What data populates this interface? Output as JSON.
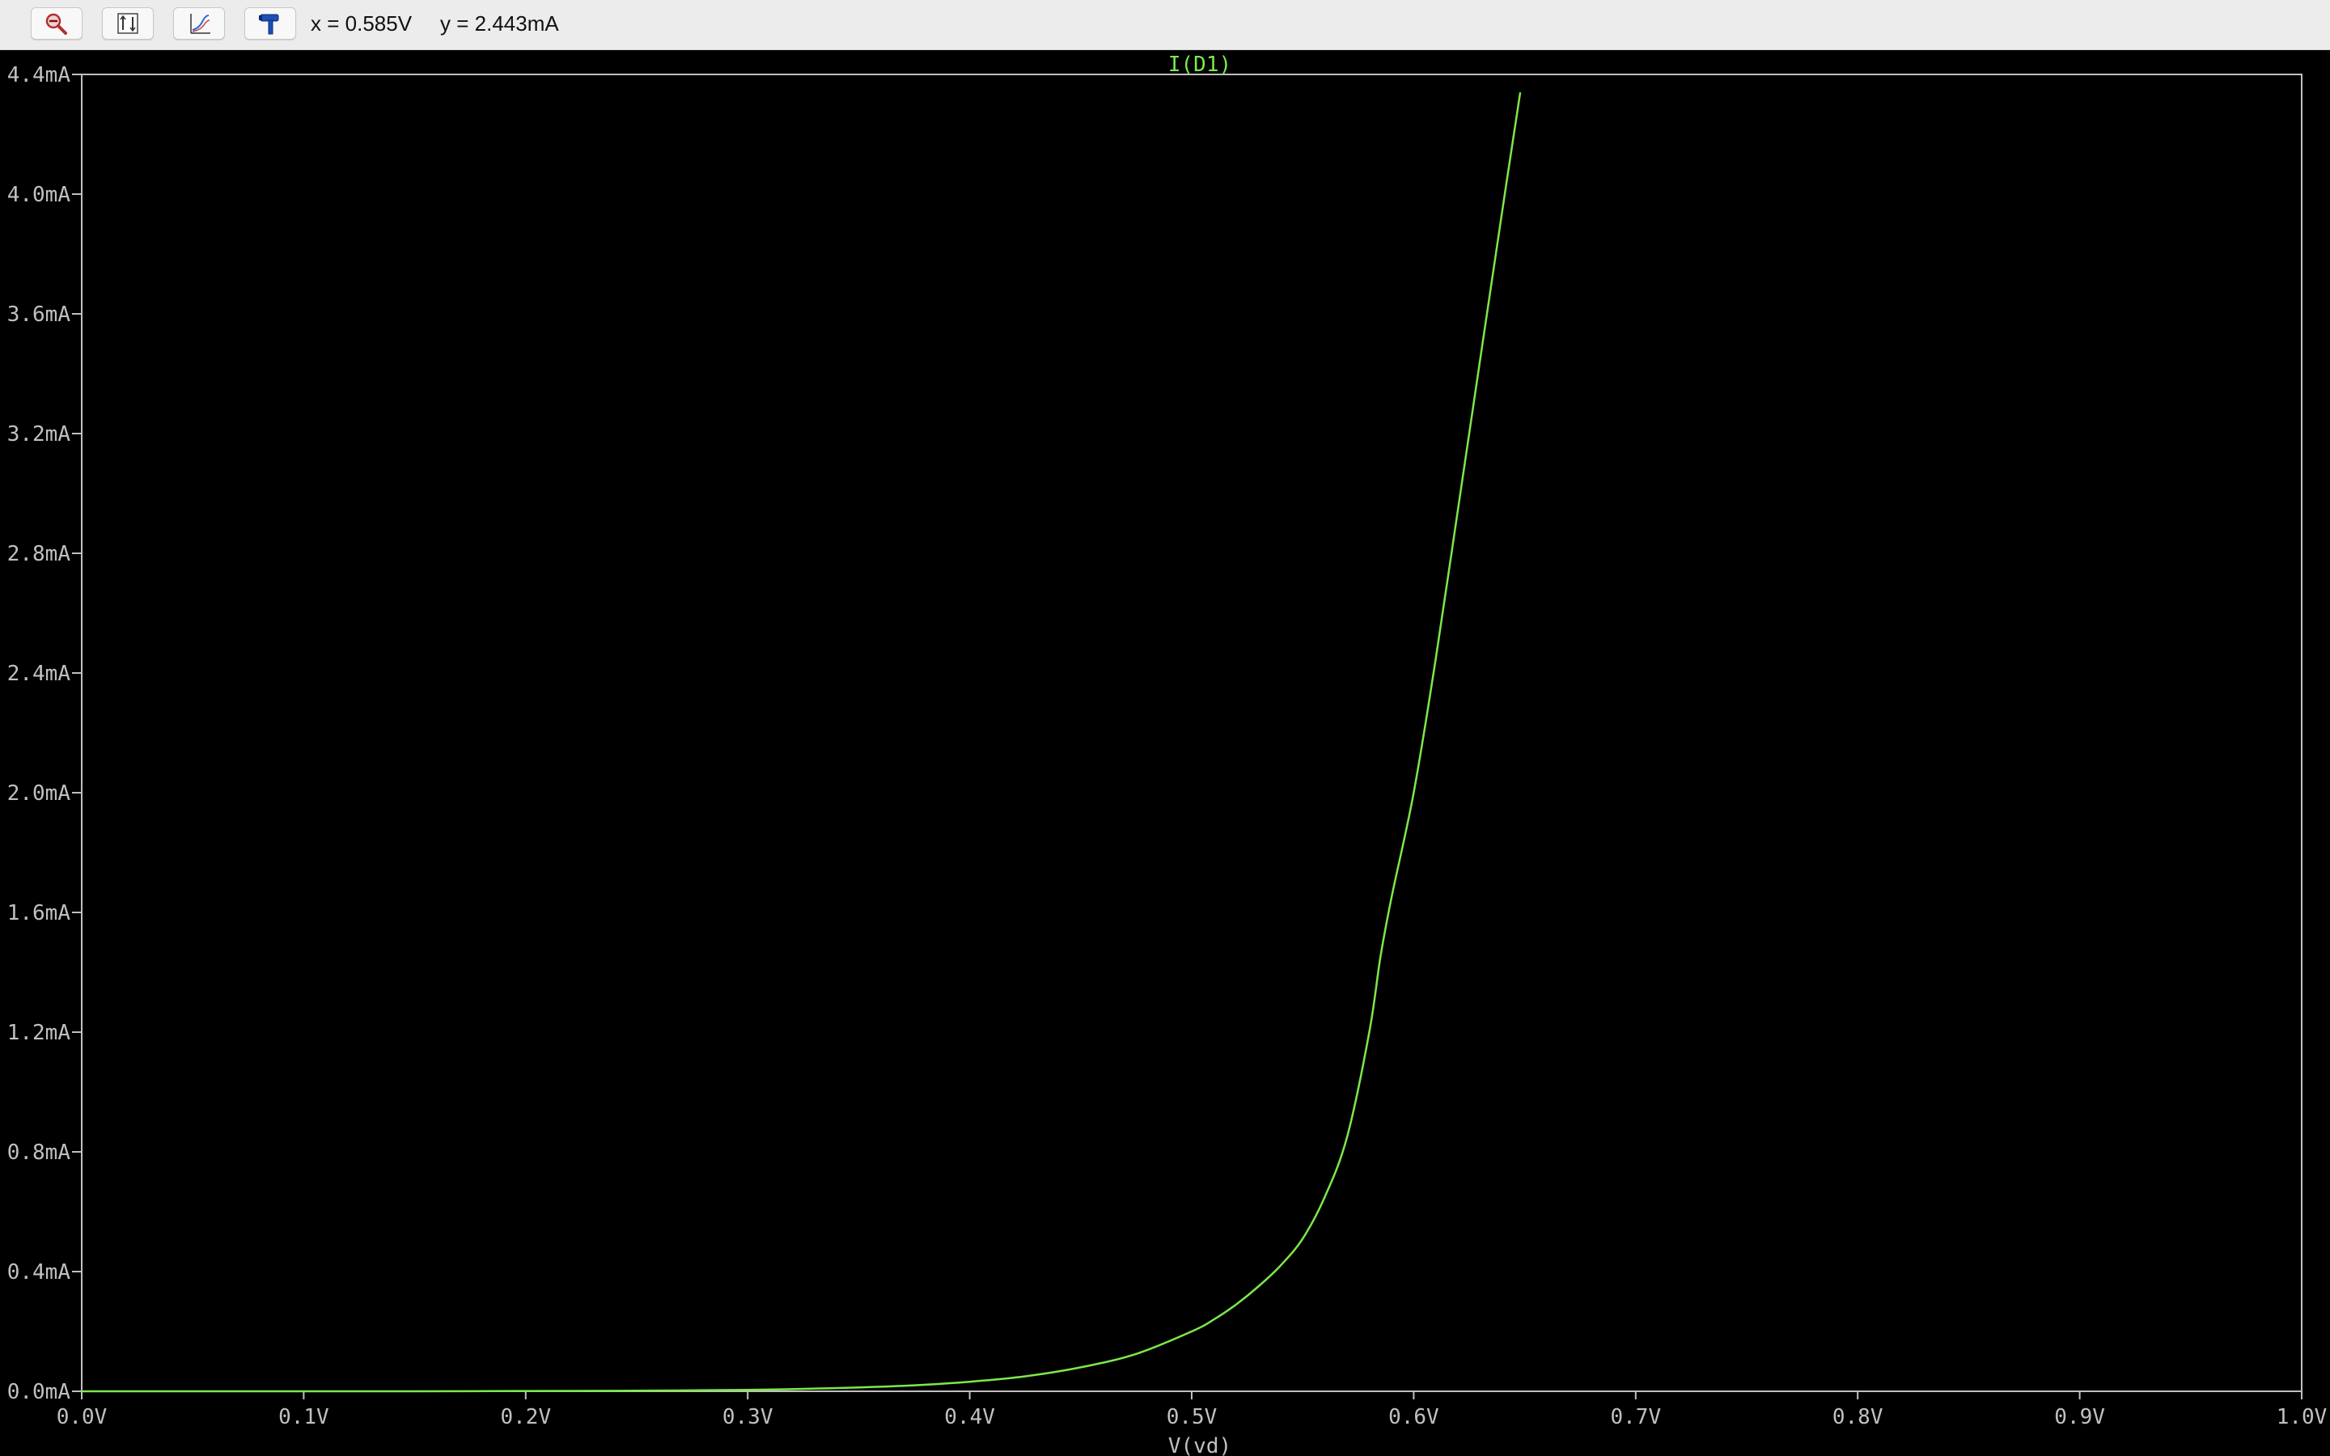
{
  "toolbar": {
    "buttons": [
      {
        "name": "zoom-out-icon"
      },
      {
        "name": "autorange-icon"
      },
      {
        "name": "plot-settings-icon"
      },
      {
        "name": "hammer-icon"
      }
    ],
    "cursor_x": "x = 0.585V",
    "cursor_y": "y = 2.443mA"
  },
  "colors": {
    "background": "#000000",
    "axis": "#c0c0c0",
    "trace": "#7ce84a",
    "toolbar": "#ececec"
  },
  "chart_data": {
    "type": "line",
    "title": "I(D1)",
    "xlabel": "V(vd)",
    "ylabel": "",
    "xlim": [
      0,
      1.0
    ],
    "ylim": [
      0,
      4.4
    ],
    "grid": false,
    "x_ticks": [
      "0.0V",
      "0.1V",
      "0.2V",
      "0.3V",
      "0.4V",
      "0.5V",
      "0.6V",
      "0.7V",
      "0.8V",
      "0.9V",
      "1.0V"
    ],
    "y_ticks": [
      "0.0mA",
      "0.4mA",
      "0.8mA",
      "1.2mA",
      "1.6mA",
      "2.0mA",
      "2.4mA",
      "2.8mA",
      "3.2mA",
      "3.6mA",
      "4.0mA",
      "4.4mA"
    ],
    "series": [
      {
        "name": "I(D1)",
        "x": [
          0.0,
          0.05,
          0.1,
          0.15,
          0.2,
          0.25,
          0.3,
          0.325,
          0.35,
          0.375,
          0.4,
          0.425,
          0.45,
          0.475,
          0.5,
          0.51,
          0.52,
          0.53,
          0.54,
          0.55,
          0.56,
          0.57,
          0.58,
          0.585,
          0.59,
          0.6,
          0.61,
          0.62,
          0.63,
          0.64,
          0.648
        ],
        "y": [
          0.0,
          0.0,
          0.0,
          0.0,
          0.001,
          0.002,
          0.005,
          0.008,
          0.013,
          0.02,
          0.032,
          0.05,
          0.08,
          0.125,
          0.2,
          0.24,
          0.29,
          0.35,
          0.42,
          0.51,
          0.65,
          0.85,
          1.2,
          1.45,
          1.65,
          2.0,
          2.45,
          2.95,
          3.45,
          3.95,
          4.34
        ]
      }
    ]
  }
}
